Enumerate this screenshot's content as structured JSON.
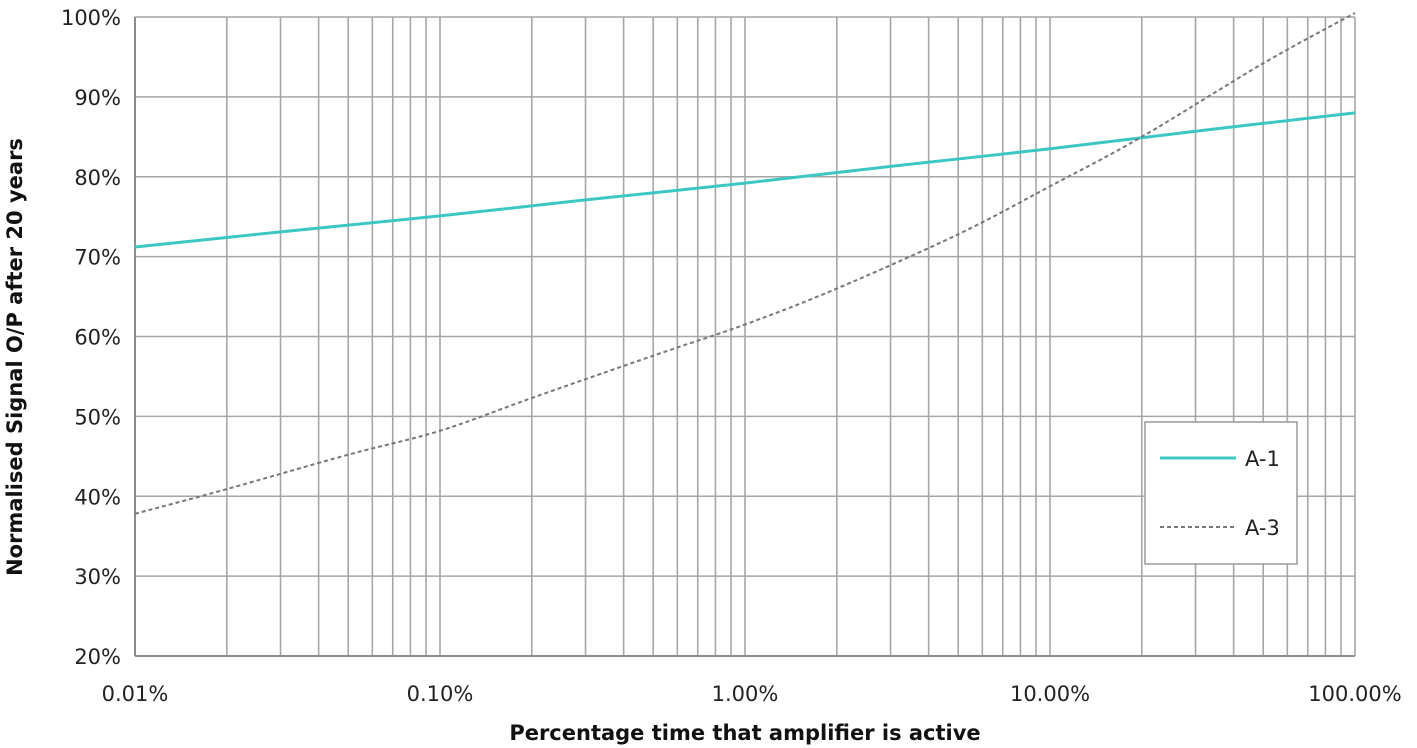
{
  "chart_data": {
    "type": "line",
    "title": "",
    "xlabel": "Percentage time that amplifier is active",
    "ylabel": "Normalised Signal O/P after 20 years",
    "x_scale": "log",
    "xlim": [
      0.01,
      100
    ],
    "ylim": [
      20,
      100
    ],
    "grid": true,
    "x_ticks": [
      {
        "value": 0.01,
        "label": "0.01%"
      },
      {
        "value": 0.1,
        "label": "0.10%"
      },
      {
        "value": 1,
        "label": "1.00%"
      },
      {
        "value": 10,
        "label": "10.00%"
      },
      {
        "value": 100,
        "label": "100.00%"
      }
    ],
    "y_ticks": [
      {
        "value": 20,
        "label": "20%"
      },
      {
        "value": 30,
        "label": "30%"
      },
      {
        "value": 40,
        "label": "40%"
      },
      {
        "value": 50,
        "label": "50%"
      },
      {
        "value": 60,
        "label": "60%"
      },
      {
        "value": 70,
        "label": "70%"
      },
      {
        "value": 80,
        "label": "80%"
      },
      {
        "value": 90,
        "label": "90%"
      },
      {
        "value": 100,
        "label": "100%"
      }
    ],
    "legend_position": "right",
    "series": [
      {
        "name": "A-1",
        "color": "#3cc7c4",
        "style": "solid",
        "x": [
          0.01,
          0.03,
          0.1,
          0.3,
          1,
          3,
          10,
          30,
          100
        ],
        "y": [
          71.2,
          73.1,
          75.1,
          77.1,
          79.2,
          81.3,
          83.5,
          85.7,
          88.0
        ]
      },
      {
        "name": "A-3",
        "color": "#777777",
        "style": "dashed",
        "x": [
          0.01,
          0.02,
          0.05,
          0.1,
          0.2,
          0.5,
          1,
          2,
          5,
          10,
          20,
          50,
          100
        ],
        "y": [
          37.8,
          40.9,
          45.2,
          48.2,
          52.3,
          57.6,
          61.5,
          66.0,
          72.8,
          78.8,
          85.0,
          94.2,
          100.5
        ]
      }
    ]
  }
}
